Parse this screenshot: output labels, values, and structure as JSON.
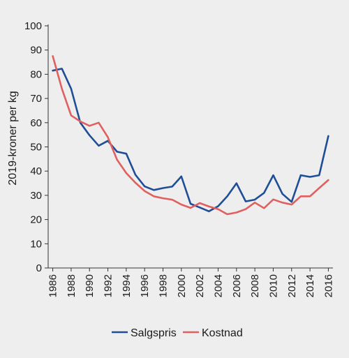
{
  "chart_data": {
    "type": "line",
    "title": "",
    "xlabel": "",
    "ylabel": "2019-kroner per kg",
    "x": [
      1986,
      1987,
      1988,
      1989,
      1990,
      1991,
      1992,
      1993,
      1994,
      1995,
      1996,
      1997,
      1998,
      1999,
      2000,
      2001,
      2002,
      2003,
      2004,
      2005,
      2006,
      2007,
      2008,
      2009,
      2010,
      2011,
      2012,
      2013,
      2014,
      2015,
      2016
    ],
    "xlim": [
      1985.5,
      2016.5
    ],
    "ylim": [
      0,
      100
    ],
    "x_ticks": [
      "1986",
      "1988",
      "1990",
      "1992",
      "1994",
      "1996",
      "1998",
      "2000",
      "2002",
      "2004",
      "2006",
      "2008",
      "2010",
      "2012",
      "2014",
      "2016"
    ],
    "y_ticks": [
      "0",
      "10",
      "20",
      "30",
      "40",
      "50",
      "60",
      "70",
      "80",
      "90",
      "100"
    ],
    "grid": false,
    "legend_position": "bottom-center",
    "series": [
      {
        "name": "Salgspris",
        "color": "#1f4e96",
        "values": [
          81.5,
          82.3,
          74.0,
          60.0,
          54.8,
          50.5,
          52.5,
          48.0,
          47.2,
          38.5,
          33.7,
          32.2,
          33.0,
          33.6,
          37.8,
          26.5,
          25.0,
          23.4,
          25.5,
          29.6,
          35.0,
          27.5,
          28.2,
          31.0,
          38.3,
          30.6,
          27.3,
          38.3,
          37.6,
          38.3,
          54.5
        ]
      },
      {
        "name": "Kostnad",
        "color": "#e06060",
        "values": [
          87.5,
          74.0,
          63.0,
          60.5,
          58.7,
          60.0,
          54.0,
          44.7,
          39.2,
          35.2,
          31.8,
          29.6,
          28.8,
          28.2,
          26.2,
          24.8,
          26.8,
          25.4,
          24.3,
          22.2,
          22.9,
          24.3,
          27.0,
          24.7,
          28.3,
          27.0,
          26.2,
          29.6,
          29.6,
          33.0,
          36.3
        ]
      }
    ]
  }
}
